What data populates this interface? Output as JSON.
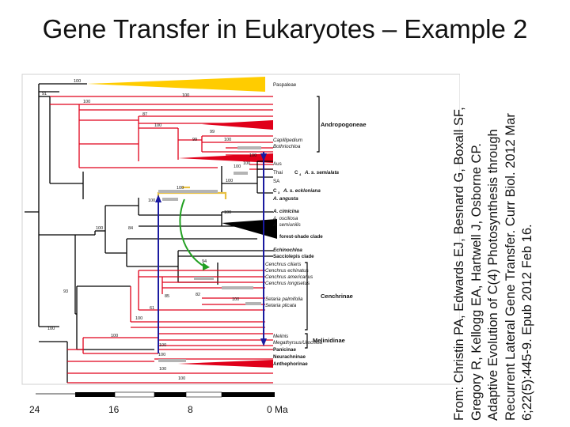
{
  "slide": {
    "title": "Gene Transfer in Eukaryotes – Example 2"
  },
  "citation": {
    "authors": "From: Christin PA, Edwards EJ, Besnard G, Boxall SF, Gregory R, Kellogg EA, Hartwell J, Osborne CP.",
    "article": "Adaptive Evolution of C(4) Photosynthesis through Recurrent Lateral Gene Transfer. Curr Biol. 2012 Mar 6;22(5):445-9. Epub 2012 Feb 16."
  },
  "tree": {
    "support_values": [
      "100",
      "91",
      "100",
      "100",
      "87",
      "100",
      "99",
      "100",
      "99",
      "100",
      "100",
      "100",
      "100",
      "100",
      "100",
      "100",
      "84",
      "100",
      "94",
      "82",
      "85",
      "100",
      "61",
      "93",
      "100",
      "100",
      "100",
      "100",
      "100",
      "100",
      "100"
    ],
    "taxa": {
      "paspaleae": "Paspaleae",
      "coelorachis": "Capillipedium",
      "bothriochloa": "Bothriochloa",
      "aus": "Aus",
      "thai": "Thai",
      "sa": "SA",
      "c4_label": "C",
      "c4_sub": "4",
      "semialata": "A. s. semialata",
      "c3_label": "C",
      "c3_sub": "3",
      "eckloniana": "A. s. eckloniana",
      "angusta": "A. angusta",
      "cimicina": "A. cimicina",
      "osciliosa": "A. osciliosa",
      "semiunilis": "A. semiunilis",
      "echinochloa": "Echinochloa",
      "sacciolepis": "Sacciolepis clade",
      "cenchrus1": "Cenchrus ciliaris",
      "cenchrus2": "Cenchrus echinatus",
      "cenchrus3": "Cenchrus americanus",
      "cenchrus4": "Cenchrus longisetus",
      "setaria1": "Setaria palmifolia",
      "setaria2": "Setaria plicata",
      "melinis": "Melinis",
      "megathyrsus": "Megathyrsus/Urochloa",
      "panicinae": "Panicinae",
      "neurachninae": "Neurachninae",
      "anthephorinae": "Anthephorinae"
    },
    "clades": {
      "andropogoneae": "Andropogoneae",
      "forest_shade": "forest-shade clade",
      "cenchrinae": "Cenchrinae",
      "melinidinae": "Melinidinae"
    },
    "colors": {
      "andropogoneae": "#e0001a",
      "paspaleae": "#ffcc00",
      "forest_shade": "#000000",
      "transfer_blue": "#1a1aa0",
      "transfer_green": "#22a022",
      "c4_yellow": "#e8c040",
      "bar_gray": "#b4b4b4"
    }
  },
  "timescale": {
    "ticks": [
      "24",
      "16",
      "8",
      "0 Ma"
    ]
  }
}
